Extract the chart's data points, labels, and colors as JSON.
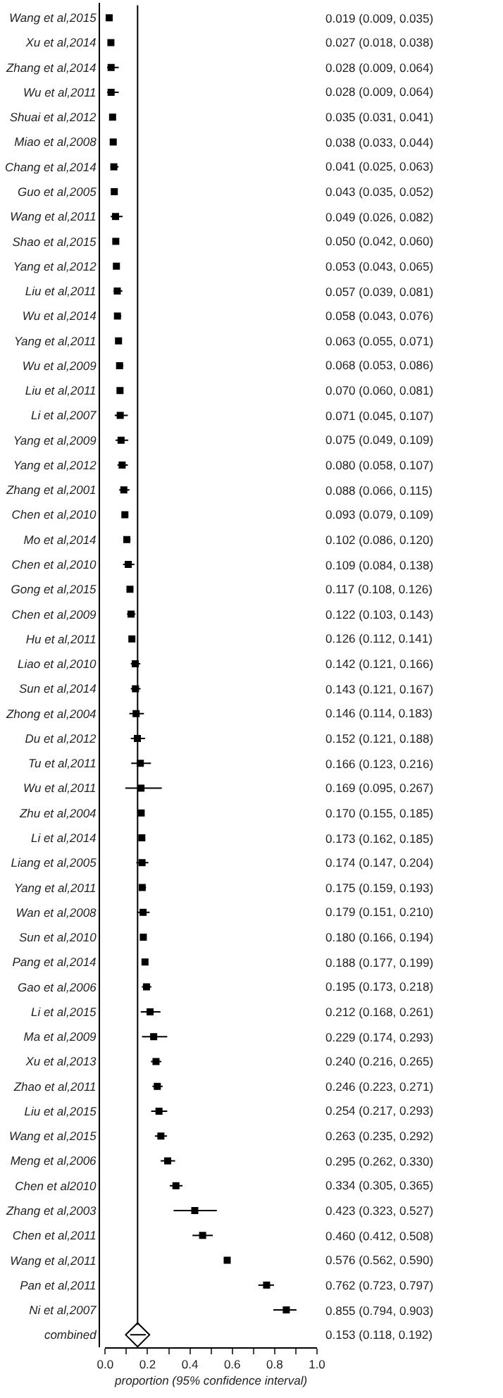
{
  "chart_data": {
    "type": "scatter",
    "orientation": "horizontal",
    "xlabel": "proportion (95% confidence interval)",
    "categories": [
      "Wang et al,2015",
      "Xu et al,2014",
      "Zhang et al,2014",
      "Wu et al,2011",
      "Shuai et al,2012",
      "Miao et al,2008",
      "Chang et al,2014",
      "Guo et al,2005",
      "Wang et al,2011",
      "Shao et al,2015",
      "Yang et al,2012",
      "Liu et al,2011",
      "Wu et al,2014",
      "Yang et al,2011",
      "Wu et al,2009",
      "Liu et al,2011",
      "Li et al,2007",
      "Yang et al,2009",
      "Yang et al,2012",
      "Zhang et al,2001",
      "Chen et al,2010",
      "Mo et al,2014",
      "Chen et al,2010",
      "Gong et al,2015",
      "Chen et al,2009",
      "Hu et al,2011",
      "Liao et al,2010",
      "Sun et al,2014",
      "Zhong et al,2004",
      "Du et al,2012",
      "Tu et al,2011",
      "Wu et al,2011",
      "Zhu et al,2004",
      "Li et al,2014",
      "Liang et al,2005",
      "Yang et al,2011",
      "Wan et al,2008",
      "Sun et al,2010",
      "Pang et al,2014",
      "Gao et al,2006",
      "Li et al,2015",
      "Ma et al,2009",
      "Xu et al,2013",
      "Zhao et al,2011",
      "Liu et al,2015",
      "Wang et al,2015",
      "Meng et al,2006",
      "Chen et al2010",
      "Zhang et al,2003",
      "Chen et al,2011",
      "Wang et al,2011",
      "Pan et al,2011",
      "Ni et al,2007",
      "combined"
    ],
    "series": [
      {
        "color": "#000000",
        "marker": "square",
        "values": [
          0.019,
          0.027,
          0.028,
          0.028,
          0.035,
          0.038,
          0.041,
          0.043,
          0.049,
          0.05,
          0.053,
          0.057,
          0.058,
          0.063,
          0.068,
          0.07,
          0.071,
          0.075,
          0.08,
          0.088,
          0.093,
          0.102,
          0.109,
          0.117,
          0.122,
          0.126,
          0.142,
          0.143,
          0.146,
          0.152,
          0.166,
          0.169,
          0.17,
          0.173,
          0.174,
          0.175,
          0.179,
          0.18,
          0.188,
          0.195,
          0.212,
          0.229,
          0.24,
          0.246,
          0.254,
          0.263,
          0.295,
          0.334,
          0.423,
          0.46,
          0.576,
          0.762,
          0.855,
          null
        ],
        "errors": [
          [
            0.009,
            0.035
          ],
          [
            0.018,
            0.038
          ],
          [
            0.009,
            0.064
          ],
          [
            0.009,
            0.064
          ],
          [
            0.031,
            0.041
          ],
          [
            0.033,
            0.044
          ],
          [
            0.025,
            0.063
          ],
          [
            0.035,
            0.052
          ],
          [
            0.026,
            0.082
          ],
          [
            0.042,
            0.06
          ],
          [
            0.043,
            0.065
          ],
          [
            0.039,
            0.081
          ],
          [
            0.043,
            0.076
          ],
          [
            0.055,
            0.071
          ],
          [
            0.053,
            0.086
          ],
          [
            0.06,
            0.081
          ],
          [
            0.045,
            0.107
          ],
          [
            0.049,
            0.109
          ],
          [
            0.058,
            0.107
          ],
          [
            0.066,
            0.115
          ],
          [
            0.079,
            0.109
          ],
          [
            0.086,
            0.12
          ],
          [
            0.084,
            0.138
          ],
          [
            0.108,
            0.126
          ],
          [
            0.103,
            0.143
          ],
          [
            0.112,
            0.141
          ],
          [
            0.121,
            0.166
          ],
          [
            0.121,
            0.167
          ],
          [
            0.114,
            0.183
          ],
          [
            0.121,
            0.188
          ],
          [
            0.123,
            0.216
          ],
          [
            0.095,
            0.267
          ],
          [
            0.155,
            0.185
          ],
          [
            0.162,
            0.185
          ],
          [
            0.147,
            0.204
          ],
          [
            0.159,
            0.193
          ],
          [
            0.151,
            0.21
          ],
          [
            0.166,
            0.194
          ],
          [
            0.177,
            0.199
          ],
          [
            0.173,
            0.218
          ],
          [
            0.168,
            0.261
          ],
          [
            0.174,
            0.293
          ],
          [
            0.216,
            0.265
          ],
          [
            0.223,
            0.271
          ],
          [
            0.217,
            0.293
          ],
          [
            0.235,
            0.292
          ],
          [
            0.262,
            0.33
          ],
          [
            0.305,
            0.365
          ],
          [
            0.323,
            0.527
          ],
          [
            0.412,
            0.508
          ],
          [
            0.562,
            0.59
          ],
          [
            0.723,
            0.797
          ],
          [
            0.794,
            0.903
          ],
          null
        ]
      },
      {
        "color": "#000000",
        "marker": "diamond",
        "values": [
          null,
          null,
          null,
          null,
          null,
          null,
          null,
          null,
          null,
          null,
          null,
          null,
          null,
          null,
          null,
          null,
          null,
          null,
          null,
          null,
          null,
          null,
          null,
          null,
          null,
          null,
          null,
          null,
          null,
          null,
          null,
          null,
          null,
          null,
          null,
          null,
          null,
          null,
          null,
          null,
          null,
          null,
          null,
          null,
          null,
          null,
          null,
          null,
          null,
          null,
          null,
          null,
          null,
          0.153
        ],
        "errors": [
          null,
          null,
          null,
          null,
          null,
          null,
          null,
          null,
          null,
          null,
          null,
          null,
          null,
          null,
          null,
          null,
          null,
          null,
          null,
          null,
          null,
          null,
          null,
          null,
          null,
          null,
          null,
          null,
          null,
          null,
          null,
          null,
          null,
          null,
          null,
          null,
          null,
          null,
          null,
          null,
          null,
          null,
          null,
          null,
          null,
          null,
          null,
          null,
          null,
          null,
          null,
          null,
          null,
          [
            0.118,
            0.192
          ]
        ]
      }
    ],
    "value_labels": [
      "0.019 (0.009, 0.035)",
      "0.027 (0.018, 0.038)",
      "0.028 (0.009, 0.064)",
      "0.028 (0.009, 0.064)",
      "0.035 (0.031, 0.041)",
      "0.038 (0.033, 0.044)",
      "0.041 (0.025, 0.063)",
      "0.043 (0.035, 0.052)",
      "0.049 (0.026, 0.082)",
      "0.050 (0.042, 0.060)",
      "0.053 (0.043, 0.065)",
      "0.057 (0.039, 0.081)",
      "0.058 (0.043, 0.076)",
      "0.063 (0.055, 0.071)",
      "0.068 (0.053, 0.086)",
      "0.070 (0.060, 0.081)",
      "0.071 (0.045, 0.107)",
      "0.075 (0.049, 0.109)",
      "0.080 (0.058, 0.107)",
      "0.088 (0.066, 0.115)",
      "0.093 (0.079, 0.109)",
      "0.102 (0.086, 0.120)",
      "0.109 (0.084, 0.138)",
      "0.117 (0.108, 0.126)",
      "0.122 (0.103, 0.143)",
      "0.126 (0.112, 0.141)",
      "0.142 (0.121, 0.166)",
      "0.143 (0.121, 0.167)",
      "0.146 (0.114, 0.183)",
      "0.152 (0.121, 0.188)",
      "0.166 (0.123, 0.216)",
      "0.169 (0.095, 0.267)",
      "0.170 (0.155, 0.185)",
      "0.173 (0.162, 0.185)",
      "0.174 (0.147, 0.204)",
      "0.175 (0.159, 0.193)",
      "0.179 (0.151, 0.210)",
      "0.180 (0.166, 0.194)",
      "0.188 (0.177, 0.199)",
      "0.195 (0.173, 0.218)",
      "0.212 (0.168, 0.261)",
      "0.229 (0.174, 0.293)",
      "0.240 (0.216, 0.265)",
      "0.246 (0.223, 0.271)",
      "0.254 (0.217, 0.293)",
      "0.263 (0.235, 0.292)",
      "0.295 (0.262, 0.330)",
      "0.334 (0.305, 0.365)",
      "0.423 (0.323, 0.527)",
      "0.460 (0.412, 0.508)",
      "0.576 (0.562, 0.590)",
      "0.762 (0.723, 0.797)",
      "0.855 (0.794, 0.903)",
      "0.153 (0.118, 0.192)"
    ],
    "ref_lines": [
      {
        "axis": "x",
        "value": 0.153,
        "color": "#000000"
      }
    ],
    "xlim": [
      0,
      1
    ],
    "xticks": [
      {
        "value": 0,
        "label": "0.0"
      },
      {
        "value": 0.1,
        "label": null
      },
      {
        "value": 0.2,
        "label": "0.2"
      },
      {
        "value": 0.3,
        "label": null
      },
      {
        "value": 0.4,
        "label": "0.4"
      },
      {
        "value": 0.5,
        "label": null
      },
      {
        "value": 0.6,
        "label": "0.6"
      },
      {
        "value": 0.7,
        "label": null
      },
      {
        "value": 0.8,
        "label": "0.8"
      },
      {
        "value": 0.9,
        "label": null
      },
      {
        "value": 1,
        "label": "1.0"
      }
    ]
  }
}
